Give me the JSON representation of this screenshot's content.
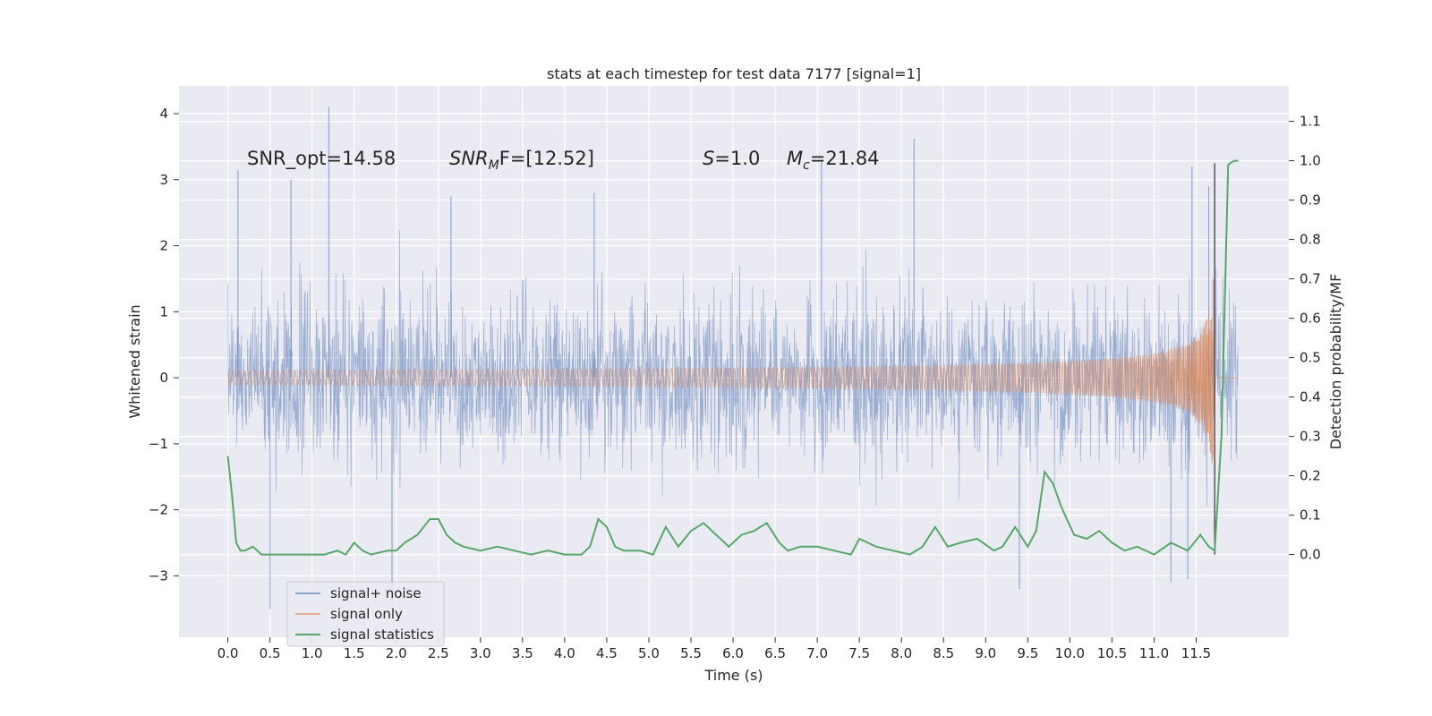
{
  "chart_data": {
    "type": "line",
    "title": "stats at each timestep for test data 7177 [signal=1]",
    "xlabel": "Time (s)",
    "ylabel": "Whitened strain",
    "ylabel_right": "Detection probability/MF",
    "xlim": [
      -0.58,
      12.6
    ],
    "ylim": [
      -3.93,
      4.42
    ],
    "ylim_right": [
      -0.21,
      1.19
    ],
    "x_ticks": [
      0.0,
      0.5,
      1.0,
      1.5,
      2.0,
      2.5,
      3.0,
      3.5,
      4.0,
      4.5,
      5.0,
      5.5,
      6.0,
      6.5,
      7.0,
      7.5,
      8.0,
      8.5,
      9.0,
      9.5,
      10.0,
      10.5,
      11.0,
      11.5
    ],
    "x_tick_labels": [
      "0.0",
      "0.5",
      "1.0",
      "1.5",
      "2.0",
      "2.5",
      "3.0",
      "3.5",
      "4.0",
      "4.5",
      "5.0",
      "5.5",
      "6.0",
      "6.5",
      "7.0",
      "7.5",
      "8.0",
      "8.5",
      "9.0",
      "9.5",
      "10.0",
      "10.5",
      "11.0",
      "11.5"
    ],
    "y_ticks": [
      -3,
      -2,
      -1,
      0,
      1,
      2,
      3,
      4
    ],
    "y_tick_labels": [
      "−3",
      "−2",
      "−1",
      "0",
      "1",
      "2",
      "3",
      "4"
    ],
    "y_ticks_right": [
      0.0,
      0.1,
      0.2,
      0.3,
      0.4,
      0.5,
      0.6,
      0.7,
      0.8,
      0.9,
      1.0,
      1.1
    ],
    "y_tick_labels_right": [
      "0.0",
      "0.1",
      "0.2",
      "0.3",
      "0.4",
      "0.5",
      "0.6",
      "0.7",
      "0.8",
      "0.9",
      "1.0",
      "1.1"
    ],
    "grid": true,
    "legend_position": "lower-left",
    "annotations": {
      "snr_opt": "SNR_opt=14.58",
      "snr_mf_sym": "SNR",
      "snr_mf_sub": "M",
      "snr_mf_rest": "F=[12.52]",
      "s_sym": "S",
      "s_rest": "=1.0",
      "mc_sym": "M",
      "mc_sub": "c",
      "mc_rest": "=21.84"
    },
    "series": [
      {
        "name": "signal+ noise",
        "color": "#4c72b0",
        "axis": "left",
        "x_range": [
          0.0,
          12.0
        ],
        "noise_std": 0.62,
        "spike_points": [
          [
            0.12,
            3.15
          ],
          [
            1.2,
            4.1
          ],
          [
            0.75,
            3.0
          ],
          [
            7.05,
            3.3
          ],
          [
            8.15,
            3.62
          ],
          [
            11.45,
            3.2
          ],
          [
            11.65,
            2.9
          ],
          [
            0.5,
            -3.5
          ],
          [
            1.95,
            -3.4
          ],
          [
            9.4,
            -3.2
          ],
          [
            11.2,
            -3.1
          ],
          [
            11.4,
            -3.05
          ],
          [
            2.65,
            2.75
          ],
          [
            4.35,
            2.8
          ]
        ]
      },
      {
        "name": "signal only",
        "color": "#dd8452",
        "axis": "left",
        "x_range": [
          0.0,
          12.0
        ],
        "chirp": {
          "t_coalescence": 11.72,
          "amplitude_at_peak": 2.6,
          "onset_amplitude": 0.02
        }
      },
      {
        "name": "signal statistics",
        "color": "#55a868",
        "axis": "right",
        "x": [
          0.0,
          0.05,
          0.1,
          0.15,
          0.2,
          0.3,
          0.4,
          0.5,
          0.6,
          0.8,
          1.0,
          1.15,
          1.3,
          1.4,
          1.5,
          1.6,
          1.7,
          1.9,
          2.0,
          2.1,
          2.25,
          2.4,
          2.5,
          2.6,
          2.7,
          2.8,
          3.0,
          3.2,
          3.4,
          3.6,
          3.8,
          4.0,
          4.2,
          4.3,
          4.4,
          4.5,
          4.6,
          4.7,
          4.9,
          5.05,
          5.2,
          5.35,
          5.5,
          5.65,
          5.8,
          5.95,
          6.1,
          6.25,
          6.4,
          6.55,
          6.65,
          6.8,
          7.0,
          7.2,
          7.4,
          7.5,
          7.7,
          7.9,
          8.1,
          8.25,
          8.4,
          8.55,
          8.7,
          8.9,
          9.1,
          9.2,
          9.35,
          9.5,
          9.6,
          9.7,
          9.8,
          9.9,
          10.05,
          10.2,
          10.35,
          10.5,
          10.65,
          10.8,
          11.0,
          11.2,
          11.4,
          11.55,
          11.65,
          11.72,
          11.8,
          11.88,
          11.95,
          12.0
        ],
        "y": [
          0.25,
          0.15,
          0.03,
          0.01,
          0.01,
          0.02,
          0.0,
          0.0,
          0.0,
          0.0,
          0.0,
          0.0,
          0.01,
          0.0,
          0.03,
          0.01,
          0.0,
          0.01,
          0.01,
          0.03,
          0.05,
          0.09,
          0.09,
          0.05,
          0.03,
          0.02,
          0.01,
          0.02,
          0.01,
          0.0,
          0.01,
          0.0,
          0.0,
          0.02,
          0.09,
          0.07,
          0.02,
          0.01,
          0.01,
          0.0,
          0.07,
          0.02,
          0.06,
          0.08,
          0.05,
          0.02,
          0.05,
          0.06,
          0.08,
          0.03,
          0.01,
          0.02,
          0.02,
          0.01,
          0.0,
          0.04,
          0.02,
          0.01,
          0.0,
          0.02,
          0.07,
          0.02,
          0.03,
          0.04,
          0.01,
          0.02,
          0.07,
          0.02,
          0.06,
          0.21,
          0.18,
          0.12,
          0.05,
          0.04,
          0.06,
          0.03,
          0.01,
          0.02,
          0.0,
          0.03,
          0.01,
          0.05,
          0.02,
          0.01,
          0.3,
          0.99,
          1.0,
          1.0
        ]
      }
    ],
    "vertical_line": {
      "x": 11.72,
      "color": "#555555"
    }
  }
}
